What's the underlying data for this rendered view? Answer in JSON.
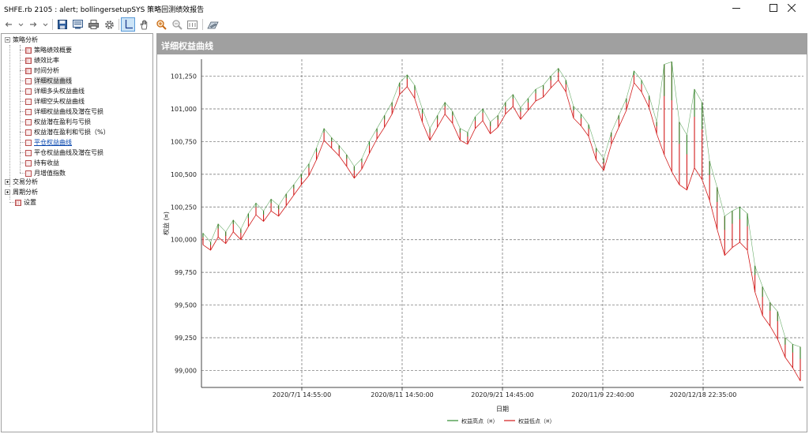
{
  "window": {
    "title": "SHFE.rb 2105 : alert; bollingersetupSYS 策略回测绩效报告"
  },
  "controls": {
    "minimize": "minimize",
    "maximize": "maximize",
    "close": "close"
  },
  "toolbar": {
    "items": [
      "back-icon",
      "dropdown-icon",
      "forward-icon",
      "dropdown-icon",
      "save-icon",
      "print-preview-icon",
      "print-icon",
      "settings-icon",
      "cursor-icon",
      "hand-icon",
      "zoom-in-icon",
      "zoom-out-icon",
      "chart-view-icon",
      "export-icon"
    ],
    "active": "cursor-icon"
  },
  "tree": {
    "strategy_analysis": "策略分析",
    "items": [
      "策略绩效概要",
      "绩效比率",
      "时间分析",
      "详细权益曲线",
      "详细多头权益曲线",
      "详细空头权益曲线",
      "详细权益曲线及潜在亏损",
      "权益潜在盈利与亏损",
      "权益潜在盈利和亏损（%）",
      "平仓权益曲线",
      "平仓权益曲线及潜在亏损",
      "持有收益",
      "月增值指数"
    ],
    "selected_index": 3,
    "link_index": 9,
    "trade_analysis": "交易分析",
    "period_analysis": "周期分析",
    "settings": "设置"
  },
  "panel": {
    "header": "详细权益曲线"
  },
  "colors": {
    "high": "#2e8b2e",
    "low": "#d21c1c",
    "header_bg": "#a0a0a0",
    "selected_tool": "#cce4f7"
  },
  "chart_data": {
    "type": "line",
    "ylabel": "权益 (¤)",
    "xlabel": "日期",
    "yticks": [
      99000,
      99250,
      99500,
      99750,
      100000,
      100250,
      100500,
      100750,
      101000,
      101250
    ],
    "ytick_labels": [
      "99,000",
      "99,250",
      "99,500",
      "99,750",
      "100,000",
      "100,250",
      "100,500",
      "100,750",
      "101,000",
      "101,250"
    ],
    "ylim": [
      98870,
      101380
    ],
    "xtick_labels": [
      "2020/7/1 14:55:00",
      "2020/8/11 14:50:00",
      "2020/9/21 14:45:00",
      "2020/11/9 22:40:00",
      "2020/12/18 22:35:00"
    ],
    "grid": true,
    "legend_position": "bottom-center",
    "series": [
      {
        "name": "权益高点（¤）",
        "color": "#2e8b2e",
        "values": [
          100050,
          99980,
          100120,
          100060,
          100150,
          100080,
          100200,
          100280,
          100220,
          100310,
          100260,
          100350,
          100420,
          100500,
          100580,
          100700,
          100850,
          100780,
          100720,
          100650,
          100560,
          100620,
          100750,
          100850,
          100950,
          101050,
          101200,
          101260,
          101180,
          101000,
          100850,
          100950,
          101050,
          100980,
          100850,
          100820,
          100940,
          101000,
          100900,
          100950,
          101050,
          101110,
          101010,
          101080,
          101150,
          101180,
          101250,
          101310,
          101220,
          101020,
          100960,
          100880,
          100700,
          100620,
          100820,
          100950,
          101080,
          101290,
          101220,
          101100,
          100900,
          101340,
          101360,
          100900,
          100800,
          101150,
          101050,
          100600,
          100400,
          100180,
          100220,
          100250,
          100200,
          99800,
          99640,
          99520,
          99450,
          99250,
          99200,
          99180
        ]
      },
      {
        "name": "权益低点（¤）",
        "color": "#d21c1c",
        "values": [
          99960,
          99920,
          100020,
          99970,
          100060,
          100000,
          100100,
          100190,
          100140,
          100220,
          100180,
          100260,
          100340,
          100420,
          100490,
          100610,
          100760,
          100700,
          100640,
          100560,
          100470,
          100540,
          100660,
          100770,
          100860,
          100960,
          101110,
          101170,
          101080,
          100900,
          100760,
          100860,
          100960,
          100890,
          100760,
          100730,
          100850,
          100910,
          100810,
          100860,
          100960,
          101020,
          100920,
          100990,
          101060,
          101090,
          101160,
          101220,
          101130,
          100930,
          100870,
          100790,
          100610,
          100530,
          100730,
          100860,
          100990,
          101200,
          101130,
          101010,
          100810,
          100650,
          100520,
          100420,
          100380,
          100550,
          100460,
          100300,
          100080,
          99880,
          99940,
          99980,
          99920,
          99600,
          99420,
          99340,
          99240,
          99100,
          99020,
          98920
        ]
      }
    ]
  }
}
